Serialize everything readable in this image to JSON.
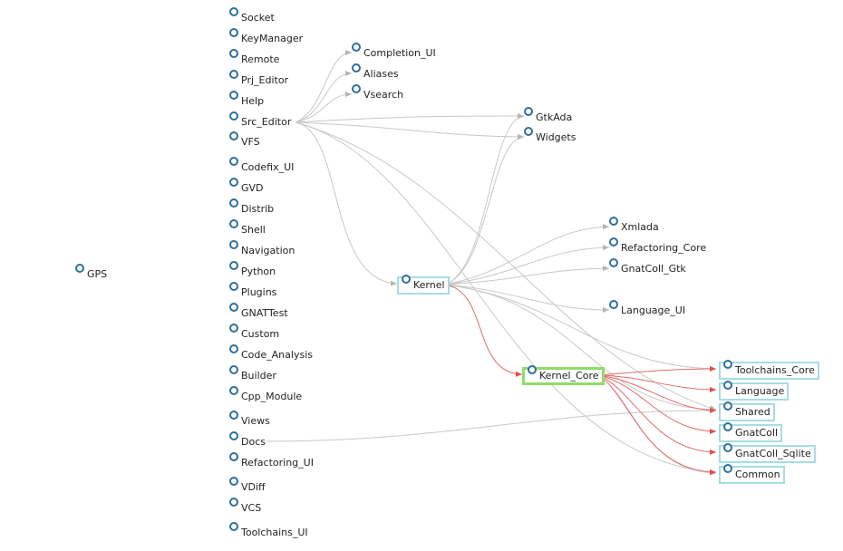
{
  "graph": {
    "root": {
      "label": "GPS"
    },
    "left_column": [
      {
        "label": "Socket"
      },
      {
        "label": "KeyManager"
      },
      {
        "label": "Remote"
      },
      {
        "label": "Prj_Editor"
      },
      {
        "label": "Help"
      },
      {
        "label": "Src_Editor"
      },
      {
        "label": "VFS"
      },
      {
        "label": "Codefix_UI"
      },
      {
        "label": "GVD"
      },
      {
        "label": "Distrib"
      },
      {
        "label": "Shell"
      },
      {
        "label": "Navigation"
      },
      {
        "label": "Python"
      },
      {
        "label": "Plugins"
      },
      {
        "label": "GNATTest"
      },
      {
        "label": "Custom"
      },
      {
        "label": "Code_Analysis"
      },
      {
        "label": "Builder"
      },
      {
        "label": "Cpp_Module"
      },
      {
        "label": "Views"
      },
      {
        "label": "Docs"
      },
      {
        "label": "Refactoring_UI"
      },
      {
        "label": "VDiff"
      },
      {
        "label": "VCS"
      },
      {
        "label": "Toolchains_UI"
      }
    ],
    "middle_column": [
      {
        "label": "Completion_UI"
      },
      {
        "label": "Aliases"
      },
      {
        "label": "Vsearch"
      },
      {
        "label": "Kernel"
      }
    ],
    "right_column": [
      {
        "label": "GtkAda"
      },
      {
        "label": "Widgets"
      },
      {
        "label": "Xmlada"
      },
      {
        "label": "Refactoring_Core"
      },
      {
        "label": "GnatColl_Gtk"
      },
      {
        "label": "Language_UI"
      },
      {
        "label": "Kernel_Core"
      }
    ],
    "far_right_column": [
      {
        "label": "Toolchains_Core"
      },
      {
        "label": "Language"
      },
      {
        "label": "Shared"
      },
      {
        "label": "GnatColl"
      },
      {
        "label": "GnatColl_Sqlite"
      },
      {
        "label": "Common"
      }
    ],
    "colors": {
      "gray_edge": "#c8c8c8",
      "red_edge": "#e56a6a",
      "node_ring": "#2e6f9e",
      "box_border": "#a5dde3",
      "selected_border": "#8fdc6a"
    }
  }
}
